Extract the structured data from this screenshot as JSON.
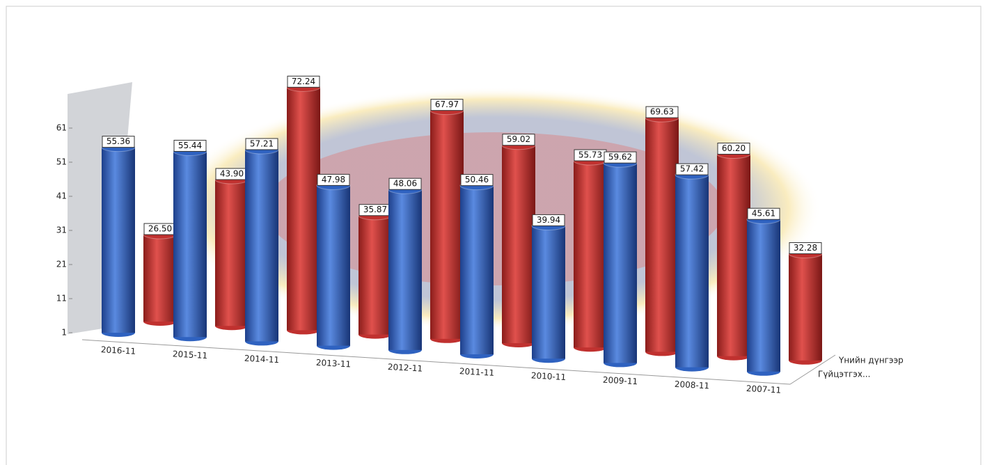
{
  "chart_data": {
    "type": "bar3d",
    "categories": [
      "2016-11",
      "2015-11",
      "2014-11",
      "2013-11",
      "2012-11",
      "2011-11",
      "2010-11",
      "2009-11",
      "2008-11",
      "2007-11"
    ],
    "series": [
      {
        "name": "Үнийн дүнгээр",
        "color": "#c0312f",
        "values": [
          26.5,
          43.9,
          72.24,
          35.87,
          67.97,
          59.02,
          55.73,
          69.63,
          60.2,
          32.28
        ],
        "value_labels": [
          "26.50",
          "43.90",
          "72.24",
          "35.87",
          "67.97",
          "59.02",
          "55.73",
          "69.63",
          "60.20",
          "32.28"
        ]
      },
      {
        "name": "Гүйцэтгэх...",
        "color": "#2f62c0",
        "values": [
          55.36,
          55.44,
          57.21,
          47.98,
          48.06,
          50.46,
          39.94,
          59.62,
          57.42,
          45.61
        ],
        "value_labels": [
          "55.36",
          "55.44",
          "57.21",
          "47.98",
          "48.06",
          "50.46",
          "39.94",
          "59.62",
          "57.42",
          "45.61"
        ]
      }
    ],
    "ylim": [
      1,
      71
    ],
    "yticks": [
      1,
      11,
      21,
      31,
      41,
      51,
      61
    ]
  }
}
